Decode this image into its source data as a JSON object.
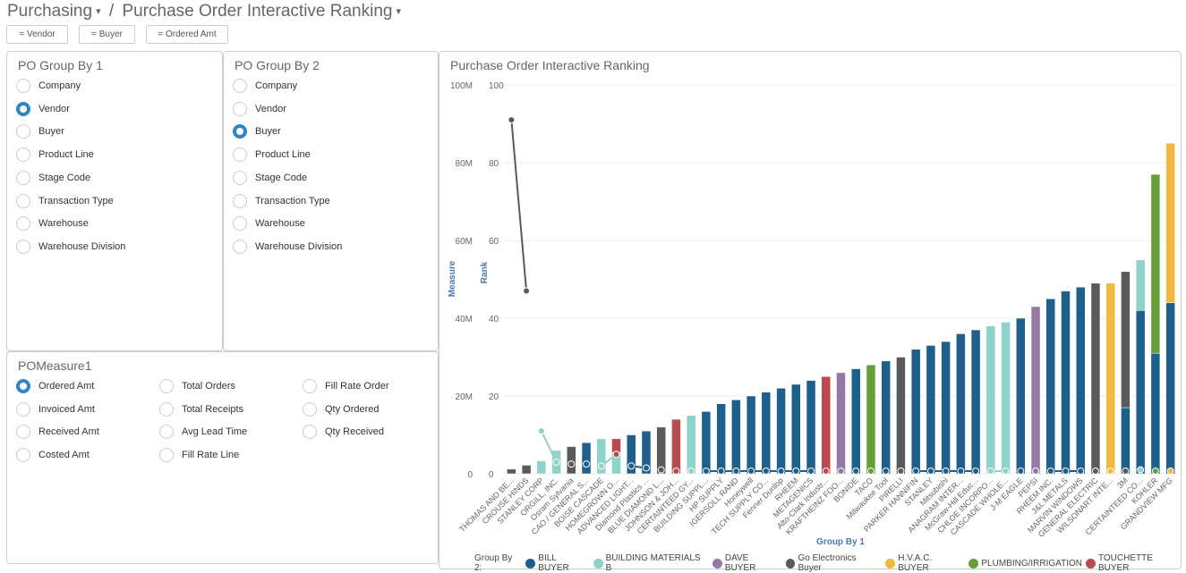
{
  "breadcrumb": {
    "module": "Purchasing",
    "page": "Purchase Order Interactive Ranking"
  },
  "filters": [
    "= Vendor",
    "= Buyer",
    "= Ordered Amt"
  ],
  "group1": {
    "title": "PO Group By 1",
    "options": [
      "Company",
      "Vendor",
      "Buyer",
      "Product Line",
      "Stage Code",
      "Transaction Type",
      "Warehouse",
      "Warehouse Division"
    ],
    "selected": "Vendor"
  },
  "group2": {
    "title": "PO Group By 2",
    "options": [
      "Company",
      "Vendor",
      "Buyer",
      "Product Line",
      "Stage Code",
      "Transaction Type",
      "Warehouse",
      "Warehouse Division"
    ],
    "selected": "Buyer"
  },
  "measure": {
    "title": "POMeasure1",
    "options": [
      "Ordered Amt",
      "Invoiced Amt",
      "Received Amt",
      "Costed Amt",
      "Total Orders",
      "Total Receipts",
      "Avg Lead Time",
      "Fill Rate Line",
      "Fill Rate Order",
      "Qty Ordered",
      "Qty Received"
    ],
    "selected": "Ordered Amt"
  },
  "chart_data": {
    "type": "bar",
    "title": "Purchase Order Interactive Ranking",
    "xlabel": "Group By 1",
    "ylabel": "Measure",
    "y2label": "Rank",
    "ylim": [
      0,
      100
    ],
    "yticks": [
      "0",
      "20M",
      "40M",
      "60M",
      "80M",
      "100M"
    ],
    "y2lim": [
      0,
      100
    ],
    "y2ticks": [
      "0",
      "20",
      "40",
      "60",
      "80",
      "100"
    ],
    "legend_title": "Group By 2:",
    "series": [
      {
        "key": "B",
        "name": "BILL BUYER",
        "color": "#1f5f8b"
      },
      {
        "key": "M",
        "name": "BUILDING MATERIALS B",
        "color": "#8dd3c7"
      },
      {
        "key": "D",
        "name": "DAVE BUYER",
        "color": "#9479a6"
      },
      {
        "key": "G",
        "name": "Go Electronics Buyer",
        "color": "#5a5a5a"
      },
      {
        "key": "H",
        "name": "H.V.A.C. BUYER",
        "color": "#f2b940"
      },
      {
        "key": "P",
        "name": "PLUMBING/IRRIGATION",
        "color": "#66a03d"
      },
      {
        "key": "T",
        "name": "TOUCHETTE BUYER",
        "color": "#b94a4e"
      }
    ],
    "categories": [
      {
        "name": "THOMAS AND BE...",
        "bars": [
          [
            "G",
            1.2
          ]
        ],
        "rank": [
          "G",
          91
        ]
      },
      {
        "name": "CROUSE HINDS",
        "bars": [
          [
            "G",
            2.2
          ]
        ],
        "rank": [
          "G",
          47
        ]
      },
      {
        "name": "STANLEY CORP",
        "bars": [
          [
            "M",
            3.3
          ]
        ],
        "rank": [
          "M",
          11
        ]
      },
      {
        "name": "ORGILL, INC.",
        "bars": [
          [
            "M",
            6
          ]
        ],
        "rank": [
          "M",
          3
        ]
      },
      {
        "name": "Osram Sylvania",
        "bars": [
          [
            "G",
            7
          ]
        ],
        "rank": [
          "G",
          2.5
        ]
      },
      {
        "name": "CAO / GENERAL S...",
        "bars": [
          [
            "B",
            8
          ]
        ],
        "rank": [
          "B",
          2.5
        ]
      },
      {
        "name": "BOISE CASCADE",
        "bars": [
          [
            "M",
            9
          ]
        ],
        "rank": [
          "M",
          2
        ]
      },
      {
        "name": "HOMEGROWN O...",
        "bars": [
          [
            "M",
            5.5
          ],
          [
            "T",
            3.5
          ]
        ],
        "rank": [
          "T",
          5
        ]
      },
      {
        "name": "ADVANCED LIGHT...",
        "bars": [
          [
            "B",
            10
          ]
        ],
        "rank": [
          "B",
          2
        ]
      },
      {
        "name": "Diamond Plastics ...",
        "bars": [
          [
            "B",
            11
          ]
        ],
        "rank": [
          "B",
          1.5
        ]
      },
      {
        "name": "BLUE DIAMOND L...",
        "bars": [
          [
            "G",
            12
          ]
        ],
        "rank": [
          "G",
          1
        ]
      },
      {
        "name": "JOHNSON & JOH...",
        "bars": [
          [
            "T",
            14
          ]
        ],
        "rank": [
          "T",
          0.7
        ]
      },
      {
        "name": "CERTAINTEED GY...",
        "bars": [
          [
            "M",
            15
          ]
        ],
        "rank": [
          "M",
          0.7
        ]
      },
      {
        "name": "BUILDING SUPPL...",
        "bars": [
          [
            "B",
            16
          ]
        ],
        "rank": [
          "B",
          0.7
        ]
      },
      {
        "name": "HP SUPPLY",
        "bars": [
          [
            "B",
            18
          ]
        ],
        "rank": [
          "B",
          0.7
        ]
      },
      {
        "name": "IGERSOLL RAND",
        "bars": [
          [
            "B",
            19
          ]
        ],
        "rank": [
          "B",
          0.7
        ]
      },
      {
        "name": "Honeywell",
        "bars": [
          [
            "B",
            20
          ]
        ],
        "rank": [
          "B",
          0.7
        ]
      },
      {
        "name": "TECH SUPPLY CO...",
        "bars": [
          [
            "B",
            21
          ]
        ],
        "rank": [
          "B",
          0.7
        ]
      },
      {
        "name": "Fenner Dunlop",
        "bars": [
          [
            "B",
            22
          ]
        ],
        "rank": [
          "B",
          0.7
        ]
      },
      {
        "name": "RHEEM",
        "bars": [
          [
            "B",
            23
          ]
        ],
        "rank": [
          "B",
          0.7
        ]
      },
      {
        "name": "METAGENICS",
        "bars": [
          [
            "B",
            24
          ]
        ],
        "rank": [
          "B",
          0.7
        ]
      },
      {
        "name": "Alto-Clark Industr...",
        "bars": [
          [
            "T",
            25
          ]
        ],
        "rank": [
          "T",
          0.7
        ]
      },
      {
        "name": "KRAFTHEINZ FOO...",
        "bars": [
          [
            "D",
            26
          ]
        ],
        "rank": [
          "D",
          0.7
        ]
      },
      {
        "name": "BONIDE",
        "bars": [
          [
            "B",
            27
          ]
        ],
        "rank": [
          "B",
          0.7
        ]
      },
      {
        "name": "TACO",
        "bars": [
          [
            "P",
            28
          ]
        ],
        "rank": [
          "P",
          0.7
        ]
      },
      {
        "name": "Milwaukee Tool",
        "bars": [
          [
            "B",
            29
          ]
        ],
        "rank": [
          "B",
          0.7
        ]
      },
      {
        "name": "PIRELLI",
        "bars": [
          [
            "G",
            30
          ]
        ],
        "rank": [
          "G",
          0.7
        ]
      },
      {
        "name": "PARKER HANNIFIN",
        "bars": [
          [
            "B",
            32
          ]
        ],
        "rank": [
          "B",
          0.7
        ]
      },
      {
        "name": "STANLEY",
        "bars": [
          [
            "B",
            33
          ]
        ],
        "rank": [
          "B",
          0.7
        ]
      },
      {
        "name": "Mitsubishi",
        "bars": [
          [
            "B",
            34
          ]
        ],
        "rank": [
          "B",
          0.7
        ]
      },
      {
        "name": "ANAGRAM INTER...",
        "bars": [
          [
            "B",
            36
          ]
        ],
        "rank": [
          "B",
          0.7
        ]
      },
      {
        "name": "McGraw-Hill Educ...",
        "bars": [
          [
            "B",
            37
          ]
        ],
        "rank": [
          "B",
          0.7
        ]
      },
      {
        "name": "CHLOE INCORPO...",
        "bars": [
          [
            "M",
            38
          ]
        ],
        "rank": [
          "M",
          0.7
        ]
      },
      {
        "name": "CASCADE WHOLE...",
        "bars": [
          [
            "M",
            39
          ]
        ],
        "rank": [
          "M",
          0.7
        ]
      },
      {
        "name": "J-M EAGLE",
        "bars": [
          [
            "B",
            40
          ]
        ],
        "rank": [
          "B",
          0.7
        ]
      },
      {
        "name": "PEPSI",
        "bars": [
          [
            "D",
            43
          ]
        ],
        "rank": [
          "D",
          0.7
        ]
      },
      {
        "name": "RHEEM INC.",
        "bars": [
          [
            "B",
            45
          ]
        ],
        "rank": [
          "B",
          0.7
        ]
      },
      {
        "name": "J&L METALS",
        "bars": [
          [
            "B",
            47
          ]
        ],
        "rank": [
          "B",
          0.7
        ]
      },
      {
        "name": "MARVIN WINDOWS",
        "bars": [
          [
            "B",
            48
          ]
        ],
        "rank": [
          "B",
          0.7
        ]
      },
      {
        "name": "GENERAL ELECTRIC",
        "bars": [
          [
            "G",
            49
          ]
        ],
        "rank": [
          "G",
          0.7
        ]
      },
      {
        "name": "WILSONART INTE...",
        "bars": [
          [
            "H",
            49
          ]
        ],
        "rank": [
          "H",
          0.7
        ]
      },
      {
        "name": "3M",
        "bars": [
          [
            "B",
            17
          ],
          [
            "G",
            35
          ]
        ],
        "rank": [
          "G",
          0.7
        ]
      },
      {
        "name": "CERTAINTEED CO...",
        "bars": [
          [
            "B",
            42
          ],
          [
            "M",
            13
          ]
        ],
        "rank": [
          "M",
          1
        ]
      },
      {
        "name": "KOHLER",
        "bars": [
          [
            "B",
            31
          ],
          [
            "P",
            46
          ]
        ],
        "rank": [
          "P",
          0.7
        ]
      },
      {
        "name": "GRANDVIEW MFG",
        "bars": [
          [
            "B",
            44
          ],
          [
            "H",
            41
          ]
        ],
        "rank": [
          "H",
          0.7
        ]
      }
    ]
  }
}
